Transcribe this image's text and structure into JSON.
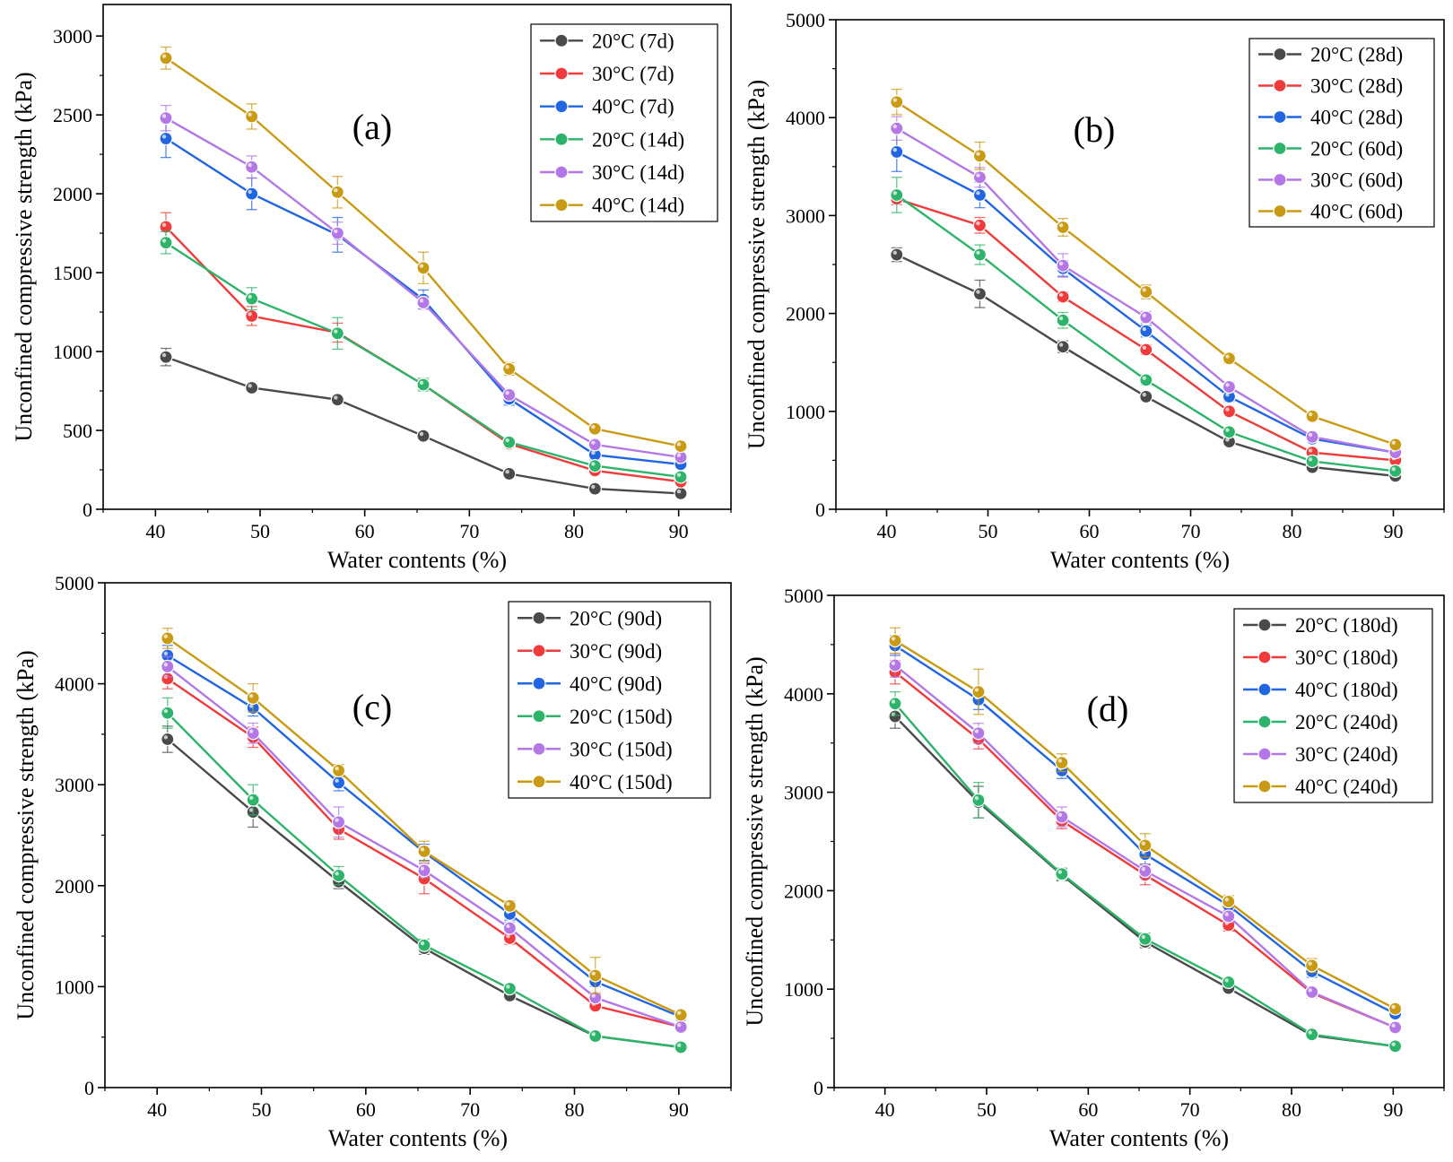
{
  "figure": {
    "colors": {
      "20C": "#4a4a4a",
      "30C": "#ef3b3b",
      "40C": "#2166e0",
      "20C_long": "#2db36a",
      "30C_long": "#b377e6",
      "40C_long": "#c99a14"
    }
  },
  "chart_data": [
    {
      "type": "line",
      "panel_label": "(a)",
      "xlabel": "Water contents (%)",
      "ylabel": "Unconfined compressive strength (kPa)",
      "xlim": [
        35,
        95
      ],
      "ylim": [
        0,
        3200
      ],
      "xticks": [
        40,
        50,
        60,
        70,
        80,
        90
      ],
      "yticks": [
        0,
        500,
        1000,
        1500,
        2000,
        2500,
        3000
      ],
      "legend_position": "top-right",
      "x": [
        41,
        49.2,
        57.4,
        65.6,
        73.8,
        82,
        90.2
      ],
      "series": [
        {
          "name": "20°C (7d)",
          "color": "#4a4a4a",
          "values": [
            965,
            770,
            695,
            465,
            225,
            130,
            100
          ],
          "errors": [
            55,
            25,
            25,
            20,
            15,
            10,
            10
          ]
        },
        {
          "name": "30°C (7d)",
          "color": "#ef3b3b",
          "values": [
            1790,
            1225,
            1120,
            790,
            415,
            245,
            175
          ],
          "errors": [
            90,
            60,
            60,
            30,
            25,
            20,
            15
          ]
        },
        {
          "name": "40°C (7d)",
          "color": "#2166e0",
          "values": [
            2350,
            2000,
            1740,
            1330,
            700,
            345,
            285
          ],
          "errors": [
            120,
            100,
            110,
            60,
            40,
            30,
            25
          ]
        },
        {
          "name": "20°C (14d)",
          "color": "#2db36a",
          "values": [
            1690,
            1335,
            1115,
            790,
            425,
            275,
            205
          ],
          "errors": [
            70,
            70,
            100,
            40,
            25,
            20,
            15
          ]
        },
        {
          "name": "30°C (14d)",
          "color": "#b377e6",
          "values": [
            2480,
            2170,
            1750,
            1310,
            725,
            410,
            330
          ],
          "errors": [
            80,
            70,
            70,
            40,
            30,
            25,
            20
          ]
        },
        {
          "name": "40°C (14d)",
          "color": "#c99a14",
          "values": [
            2860,
            2490,
            2010,
            1530,
            890,
            510,
            400
          ],
          "errors": [
            70,
            80,
            100,
            100,
            40,
            25,
            25
          ]
        }
      ]
    },
    {
      "type": "line",
      "panel_label": "(b)",
      "xlabel": "Water contents (%)",
      "ylabel": "Unconfined compressive strength (kPa)",
      "xlim": [
        35,
        95
      ],
      "ylim": [
        0,
        5000
      ],
      "xticks": [
        40,
        50,
        60,
        70,
        80,
        90
      ],
      "yticks": [
        0,
        1000,
        2000,
        3000,
        4000,
        5000
      ],
      "legend_position": "top-right",
      "x": [
        41,
        49.2,
        57.4,
        65.6,
        73.8,
        82,
        90.2
      ],
      "series": [
        {
          "name": "20°C (28d)",
          "color": "#4a4a4a",
          "values": [
            2600,
            2200,
            1660,
            1150,
            690,
            430,
            340
          ],
          "errors": [
            70,
            140,
            60,
            40,
            30,
            20,
            20
          ]
        },
        {
          "name": "30°C (28d)",
          "color": "#ef3b3b",
          "values": [
            3170,
            2900,
            2170,
            1630,
            1000,
            580,
            500
          ],
          "errors": [
            60,
            80,
            50,
            50,
            40,
            25,
            20
          ]
        },
        {
          "name": "40°C (28d)",
          "color": "#2166e0",
          "values": [
            3650,
            3210,
            2460,
            1820,
            1150,
            720,
            580
          ],
          "errors": [
            200,
            130,
            80,
            60,
            50,
            30,
            25
          ]
        },
        {
          "name": "20°C (60d)",
          "color": "#2db36a",
          "values": [
            3210,
            2600,
            1930,
            1320,
            790,
            490,
            390
          ],
          "errors": [
            180,
            100,
            80,
            50,
            40,
            25,
            20
          ]
        },
        {
          "name": "30°C (60d)",
          "color": "#b377e6",
          "values": [
            3890,
            3390,
            2490,
            1960,
            1250,
            740,
            580
          ],
          "errors": [
            120,
            100,
            120,
            60,
            50,
            30,
            25
          ]
        },
        {
          "name": "40°C (60d)",
          "color": "#c99a14",
          "values": [
            4160,
            3610,
            2880,
            2220,
            1540,
            950,
            660
          ],
          "errors": [
            130,
            140,
            90,
            70,
            50,
            40,
            30
          ]
        }
      ]
    },
    {
      "type": "line",
      "panel_label": "(c)",
      "xlabel": "Water contents (%)",
      "ylabel": "Unconfined compressive strength (kPa)",
      "xlim": [
        35,
        95
      ],
      "ylim": [
        0,
        5000
      ],
      "xticks": [
        40,
        50,
        60,
        70,
        80,
        90
      ],
      "yticks": [
        0,
        1000,
        2000,
        3000,
        4000,
        5000
      ],
      "legend_position": "top-right",
      "x": [
        41,
        49.2,
        57.4,
        65.6,
        73.8,
        82,
        90.2
      ],
      "series": [
        {
          "name": "20°C (90d)",
          "color": "#4a4a4a",
          "values": [
            3450,
            2730,
            2040,
            1380,
            910,
            510,
            400
          ],
          "errors": [
            130,
            150,
            70,
            60,
            40,
            30,
            25
          ]
        },
        {
          "name": "30°C (90d)",
          "color": "#ef3b3b",
          "values": [
            4050,
            3470,
            2560,
            2070,
            1480,
            810,
            600
          ],
          "errors": [
            100,
            100,
            100,
            150,
            60,
            40,
            30
          ]
        },
        {
          "name": "40°C (90d)",
          "color": "#2166e0",
          "values": [
            4280,
            3760,
            3020,
            2330,
            1720,
            1050,
            700
          ],
          "errors": [
            100,
            80,
            80,
            80,
            60,
            50,
            30
          ]
        },
        {
          "name": "20°C (150d)",
          "color": "#2db36a",
          "values": [
            3710,
            2850,
            2100,
            1410,
            980,
            510,
            400
          ],
          "errors": [
            150,
            150,
            90,
            60,
            40,
            30,
            25
          ]
        },
        {
          "name": "30°C (150d)",
          "color": "#b377e6",
          "values": [
            4170,
            3510,
            2630,
            2150,
            1580,
            890,
            600
          ],
          "errors": [
            100,
            100,
            150,
            70,
            60,
            50,
            30
          ]
        },
        {
          "name": "40°C (150d)",
          "color": "#c99a14",
          "values": [
            4450,
            3860,
            3140,
            2340,
            1800,
            1110,
            720
          ],
          "errors": [
            100,
            140,
            60,
            100,
            50,
            180,
            40
          ]
        }
      ]
    },
    {
      "type": "line",
      "panel_label": "(d)",
      "xlabel": "Water contents (%)",
      "ylabel": "Unconfined compressive strength (kPa)",
      "xlim": [
        35,
        95
      ],
      "ylim": [
        0,
        5000
      ],
      "xticks": [
        40,
        50,
        60,
        70,
        80,
        90
      ],
      "yticks": [
        0,
        1000,
        2000,
        3000,
        4000,
        5000
      ],
      "legend_position": "top-right",
      "x": [
        41,
        49.2,
        57.4,
        65.6,
        73.8,
        82,
        90.2
      ],
      "series": [
        {
          "name": "20°C (180d)",
          "color": "#4a4a4a",
          "values": [
            3770,
            2900,
            2160,
            1480,
            1010,
            530,
            420
          ],
          "errors": [
            120,
            160,
            60,
            60,
            40,
            30,
            25
          ]
        },
        {
          "name": "30°C (180d)",
          "color": "#ef3b3b",
          "values": [
            4220,
            3540,
            2710,
            2160,
            1650,
            960,
            610
          ],
          "errors": [
            120,
            100,
            80,
            100,
            60,
            50,
            30
          ]
        },
        {
          "name": "40°C (180d)",
          "color": "#2166e0",
          "values": [
            4490,
            3940,
            3220,
            2370,
            1850,
            1180,
            750
          ],
          "errors": [
            100,
            100,
            80,
            100,
            60,
            60,
            40
          ]
        },
        {
          "name": "20°C (240d)",
          "color": "#2db36a",
          "values": [
            3900,
            2920,
            2170,
            1510,
            1070,
            540,
            420
          ],
          "errors": [
            120,
            180,
            60,
            60,
            40,
            30,
            25
          ]
        },
        {
          "name": "30°C (240d)",
          "color": "#b377e6",
          "values": [
            4290,
            3600,
            2750,
            2200,
            1740,
            970,
            610
          ],
          "errors": [
            120,
            100,
            100,
            70,
            60,
            40,
            30
          ]
        },
        {
          "name": "40°C (240d)",
          "color": "#c99a14",
          "values": [
            4540,
            4020,
            3300,
            2460,
            1890,
            1240,
            800
          ],
          "errors": [
            130,
            230,
            90,
            120,
            60,
            70,
            40
          ]
        }
      ]
    }
  ]
}
